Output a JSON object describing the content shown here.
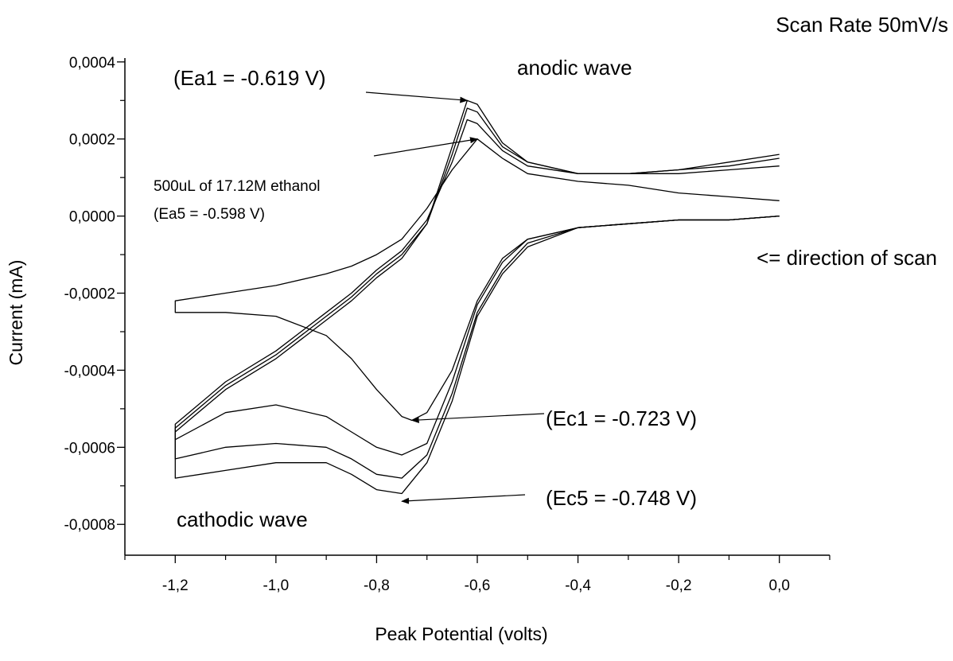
{
  "chart_data": {
    "type": "line",
    "title": "",
    "xlabel": "Peak Potential (volts)",
    "ylabel": "Current (mA)",
    "xlim": [
      -1.3,
      0.1
    ],
    "ylim": [
      -0.00088,
      0.00041
    ],
    "x_ticks": [
      -1.2,
      -1.0,
      -0.8,
      -0.6,
      -0.4,
      -0.2,
      0.0
    ],
    "x_tick_labels": [
      "-1,2",
      "-1,0",
      "-0,8",
      "-0,6",
      "-0,4",
      "-0,2",
      "0,0"
    ],
    "y_ticks": [
      0.0004,
      0.0002,
      0.0,
      -0.0002,
      -0.0004,
      -0.0006,
      -0.0008
    ],
    "y_tick_labels": [
      "0,0004",
      "0,0002",
      "0,0000",
      "-0,0002",
      "-0,0004",
      "-0,0006",
      "-0,0008"
    ],
    "grid": false,
    "legend": "none",
    "line_color": "#000000",
    "series": [
      {
        "x": [
          0.0,
          -0.1,
          -0.2,
          -0.3,
          -0.4,
          -0.5,
          -0.55,
          -0.6,
          -0.65,
          -0.7,
          -0.75,
          -0.8,
          -0.85,
          -0.9,
          -1.0,
          -1.1,
          -1.2,
          -1.2,
          -1.1,
          -1.0,
          -0.95,
          -0.9,
          -0.85,
          -0.8,
          -0.75,
          -0.7,
          -0.65,
          -0.62,
          -0.6,
          -0.55,
          -0.5,
          -0.4,
          -0.3,
          -0.2,
          -0.1,
          0.0
        ],
        "y": [
          0.0,
          -1e-05,
          -1e-05,
          -2e-05,
          -3e-05,
          -8e-05,
          -0.00015,
          -0.00026,
          -0.00048,
          -0.00064,
          -0.00072,
          -0.00071,
          -0.00067,
          -0.00064,
          -0.00064,
          -0.00066,
          -0.00068,
          -0.00056,
          -0.00045,
          -0.00037,
          -0.00032,
          -0.00027,
          -0.00022,
          -0.00016,
          -0.00011,
          -2e-05,
          0.00018,
          0.0003,
          0.00029,
          0.00019,
          0.00014,
          0.00011,
          0.00011,
          0.00012,
          0.00014,
          0.00016
        ]
      },
      {
        "x": [
          0.0,
          -0.1,
          -0.2,
          -0.3,
          -0.4,
          -0.5,
          -0.55,
          -0.6,
          -0.65,
          -0.7,
          -0.75,
          -0.8,
          -0.85,
          -0.9,
          -1.0,
          -1.1,
          -1.2,
          -1.2,
          -1.1,
          -1.0,
          -0.95,
          -0.9,
          -0.85,
          -0.8,
          -0.75,
          -0.7,
          -0.65,
          -0.62,
          -0.6,
          -0.55,
          -0.5,
          -0.4,
          -0.3,
          -0.2,
          -0.1,
          0.0
        ],
        "y": [
          0.0,
          -1e-05,
          -1e-05,
          -2e-05,
          -3e-05,
          -7e-05,
          -0.00014,
          -0.00025,
          -0.00046,
          -0.00062,
          -0.00068,
          -0.00067,
          -0.00063,
          -0.0006,
          -0.00059,
          -0.0006,
          -0.00063,
          -0.00055,
          -0.00044,
          -0.00036,
          -0.00031,
          -0.00026,
          -0.00021,
          -0.00015,
          -0.0001,
          -2e-05,
          0.00016,
          0.00028,
          0.00027,
          0.00018,
          0.00014,
          0.00011,
          0.00011,
          0.00012,
          0.00013,
          0.00015
        ]
      },
      {
        "x": [
          0.0,
          -0.1,
          -0.2,
          -0.3,
          -0.4,
          -0.5,
          -0.55,
          -0.6,
          -0.65,
          -0.7,
          -0.75,
          -0.8,
          -0.85,
          -0.9,
          -1.0,
          -1.1,
          -1.2,
          -1.2,
          -1.1,
          -1.0,
          -0.95,
          -0.9,
          -0.85,
          -0.8,
          -0.75,
          -0.7,
          -0.65,
          -0.62,
          -0.6,
          -0.55,
          -0.5,
          -0.4,
          -0.3,
          -0.2,
          -0.1,
          0.0
        ],
        "y": [
          0.0,
          -1e-05,
          -1e-05,
          -2e-05,
          -3e-05,
          -6e-05,
          -0.00012,
          -0.00023,
          -0.00043,
          -0.00059,
          -0.00062,
          -0.0006,
          -0.00056,
          -0.00052,
          -0.00049,
          -0.00051,
          -0.00058,
          -0.00054,
          -0.00043,
          -0.00035,
          -0.0003,
          -0.00025,
          -0.0002,
          -0.00014,
          -9e-05,
          -1e-05,
          0.00014,
          0.00025,
          0.00024,
          0.00017,
          0.00013,
          0.00011,
          0.00011,
          0.00011,
          0.00012,
          0.00013
        ]
      },
      {
        "x": [
          0.0,
          -0.1,
          -0.2,
          -0.3,
          -0.4,
          -0.5,
          -0.55,
          -0.6,
          -0.65,
          -0.7,
          -0.73,
          -0.75,
          -0.8,
          -0.85,
          -0.9,
          -1.0,
          -1.1,
          -1.2,
          -1.2,
          -1.1,
          -1.0,
          -0.9,
          -0.85,
          -0.8,
          -0.75,
          -0.7,
          -0.65,
          -0.6,
          -0.55,
          -0.5,
          -0.4,
          -0.3,
          -0.2,
          -0.1,
          0.0
        ],
        "y": [
          0.0,
          -1e-05,
          -1e-05,
          -2e-05,
          -3e-05,
          -6e-05,
          -0.00011,
          -0.00022,
          -0.0004,
          -0.00051,
          -0.00053,
          -0.00052,
          -0.00045,
          -0.00037,
          -0.00031,
          -0.00026,
          -0.00025,
          -0.00025,
          -0.00022,
          -0.0002,
          -0.00018,
          -0.00015,
          -0.00013,
          -0.0001,
          -6e-05,
          2e-05,
          0.00012,
          0.0002,
          0.00015,
          0.00011,
          9e-05,
          8e-05,
          6e-05,
          5e-05,
          4e-05
        ]
      }
    ],
    "annotations": {
      "scan_rate": "Scan Rate 50mV/s",
      "anodic_wave": "anodic wave",
      "ea1": "(Ea1 = -0.619 V)",
      "ethanol_line1": "500uL of 17.12M ethanol",
      "ethanol_line2": "(Ea5 = -0.598 V)",
      "direction": "<= direction of scan",
      "ec1": "(Ec1 = -0.723 V)",
      "ec5": "(Ec5 = -0.748 V)",
      "cathodic_wave": "cathodic wave"
    },
    "arrow_targets": {
      "ea1": [
        -0.62,
        0.0003
      ],
      "ea5": [
        -0.6,
        0.0002
      ],
      "ec1": [
        -0.73,
        -0.00053
      ],
      "ec5": [
        -0.75,
        -0.00074
      ]
    }
  }
}
